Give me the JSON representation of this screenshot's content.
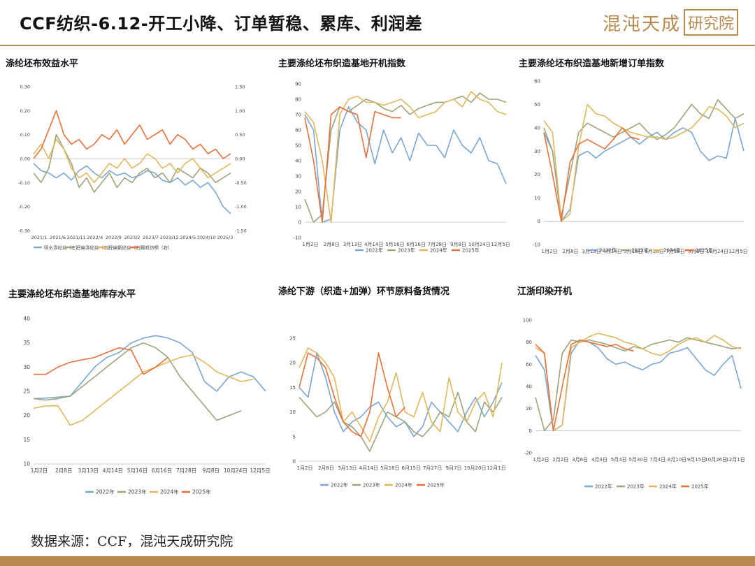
{
  "header": {
    "title": "CCF纺织-6.12-开工小降、订单暂稳、累库、利润差",
    "logo_text": "混沌天成",
    "logo_box": "研究院"
  },
  "footer": {
    "source": "数据来源：CCF，混沌天成研究院"
  },
  "colors": {
    "2022": "#7aa6d4",
    "2023": "#98a67a",
    "2024": "#e0b75a",
    "2025": "#e8703a",
    "gold": "#b98a4e"
  },
  "charts": [
    {
      "id": "c1",
      "title": "涤纶坯布效益水平",
      "type": "line",
      "ylim": [
        -0.3,
        0.3
      ],
      "yticks": [
        "0.30",
        "0.20",
        "0.10",
        "0.00",
        "-0.10",
        "-0.20",
        "-0.30"
      ],
      "y2lim": [
        -1.5,
        1.5
      ],
      "y2ticks": [
        "1.50",
        "1.00",
        "0.50",
        "0.00",
        "-0.50",
        "-1.00",
        "-1.50"
      ],
      "xticks": [
        "2021/1",
        "2021/6",
        "2021/11",
        "2022/4",
        "2022/9",
        "2023/2",
        "2023/7",
        "2023/12",
        "2024/5",
        "2024/10",
        "2025/3"
      ],
      "legend": [
        "喷水涤纶丝（左）",
        "经编涤纶丝（右）",
        "经编氨纶丝（右）",
        "圆机仿棉（右）"
      ],
      "series": [
        {
          "name": "喷水涤纶丝（左）",
          "color": "#7aa6d4",
          "axis": "left",
          "values": [
            -0.02,
            -0.05,
            -0.06,
            -0.08,
            -0.06,
            -0.09,
            -0.05,
            -0.03,
            -0.06,
            -0.08,
            -0.05,
            -0.07,
            -0.06,
            -0.08,
            -0.07,
            -0.05,
            -0.06,
            -0.09,
            -0.1,
            -0.08,
            -0.11,
            -0.09,
            -0.12,
            -0.1,
            -0.14,
            -0.2,
            -0.23
          ]
        },
        {
          "name": "经编涤纶丝（右）",
          "color": "#98a67a",
          "axis": "right",
          "values": [
            -0.3,
            -0.5,
            -0.2,
            0.5,
            0.2,
            -0.1,
            -0.6,
            -0.4,
            -0.7,
            -0.5,
            -0.3,
            -0.6,
            -0.4,
            -0.5,
            -0.3,
            -0.2,
            -0.4,
            -0.3,
            -0.5,
            -0.2,
            -0.3,
            -0.4,
            -0.2,
            -0.3,
            -0.5,
            -0.4,
            -0.3
          ]
        },
        {
          "name": "经编氨纶丝（右）",
          "color": "#e0b75a",
          "axis": "right",
          "values": [
            0.1,
            0.3,
            0.0,
            0.4,
            0.2,
            -0.2,
            -0.4,
            -0.3,
            -0.5,
            -0.3,
            -0.1,
            -0.2,
            0.0,
            -0.2,
            -0.1,
            0.1,
            0.0,
            -0.2,
            -0.1,
            -0.3,
            -0.1,
            0.0,
            -0.2,
            -0.4,
            -0.3,
            -0.2,
            -0.1
          ]
        },
        {
          "name": "圆机仿棉（右）",
          "color": "#e8703a",
          "axis": "right",
          "values": [
            0.0,
            0.2,
            0.6,
            1.0,
            0.5,
            0.3,
            0.4,
            0.2,
            0.3,
            0.5,
            0.4,
            0.6,
            0.3,
            0.5,
            0.7,
            0.4,
            0.5,
            0.6,
            0.3,
            0.5,
            0.4,
            0.2,
            0.3,
            0.1,
            0.2,
            0.0,
            0.1
          ]
        }
      ]
    },
    {
      "id": "c2",
      "title": "主要涤纶坯布织造基地开机指数",
      "type": "line",
      "ylim": [
        -10,
        90
      ],
      "yticks": [
        "90",
        "80",
        "70",
        "60",
        "50",
        "40",
        "30",
        "20",
        "10",
        "0",
        "-10"
      ],
      "xticks": [
        "1月2日",
        "2月8日",
        "3月13日",
        "4月14日",
        "5月16日",
        "6月16日",
        "7月28日",
        "9月8日",
        "10月24日",
        "12月5日"
      ],
      "legend": [
        "2022年",
        "2023年",
        "2024年",
        "2025年"
      ],
      "series": [
        {
          "name": "2022年",
          "values": [
            70,
            60,
            0,
            2,
            60,
            75,
            65,
            60,
            38,
            60,
            45,
            55,
            40,
            58,
            50,
            50,
            42,
            60,
            50,
            45,
            55,
            40,
            38,
            25
          ]
        },
        {
          "name": "2023年",
          "values": [
            15,
            0,
            5,
            60,
            75,
            72,
            76,
            80,
            78,
            74,
            72,
            76,
            70,
            74,
            76,
            78,
            78,
            80,
            82,
            78,
            84,
            80,
            80,
            78
          ]
        },
        {
          "name": "2024年",
          "values": [
            72,
            65,
            40,
            0,
            70,
            80,
            82,
            78,
            78,
            76,
            78,
            80,
            75,
            68,
            70,
            72,
            78,
            80,
            75,
            85,
            80,
            78,
            72,
            70
          ]
        },
        {
          "name": "2025年",
          "values": [
            68,
            40,
            0,
            70,
            75,
            72,
            70,
            42,
            72,
            70,
            68,
            68
          ]
        }
      ]
    },
    {
      "id": "c3",
      "title": "主要涤纶坯布织造基地新增订单指数",
      "type": "line",
      "ylim": [
        -10,
        60
      ],
      "yticks": [
        "60",
        "50",
        "40",
        "30",
        "20",
        "10",
        "0",
        "-10"
      ],
      "xticks": [
        "1月2日",
        "2月8日",
        "3月13日",
        "4月14日",
        "5月16日",
        "6月16日",
        "7月28日",
        "9月8日",
        "10月24日",
        "12月5日"
      ],
      "legend": [
        "2022年",
        "2023年",
        "2024年",
        "2025年"
      ],
      "series": [
        {
          "name": "2022年",
          "values": [
            38,
            30,
            0,
            5,
            28,
            30,
            27,
            30,
            32,
            34,
            36,
            33,
            36,
            38,
            35,
            38,
            40,
            38,
            30,
            26,
            28,
            27,
            44,
            30
          ]
        },
        {
          "name": "2023年",
          "values": [
            40,
            30,
            2,
            20,
            38,
            42,
            40,
            38,
            36,
            38,
            40,
            42,
            38,
            35,
            37,
            40,
            45,
            50,
            46,
            44,
            52,
            48,
            44,
            46
          ]
        },
        {
          "name": "2024年",
          "values": [
            43,
            38,
            0,
            3,
            32,
            50,
            46,
            45,
            42,
            40,
            38,
            37,
            36,
            36,
            35,
            36,
            38,
            40,
            44,
            49,
            48,
            45,
            40,
            42
          ]
        },
        {
          "name": "2025年",
          "values": [
            38,
            20,
            0,
            25,
            33,
            35,
            33,
            31,
            35,
            40,
            36,
            35
          ]
        }
      ]
    },
    {
      "id": "c4",
      "title": "主要涤纶坯布织造基地库存水平",
      "type": "line",
      "ylim": [
        10,
        40
      ],
      "yticks": [
        "40",
        "35",
        "30",
        "25",
        "20",
        "15",
        "10"
      ],
      "xticks": [
        "1月2日",
        "2月8日",
        "3月13日",
        "4月14日",
        "5月16日",
        "6月16日",
        "7月28日",
        "9月8日",
        "10月24日",
        "12月5日"
      ],
      "legend": [
        "2022年",
        "2023年",
        "2024年",
        "2025年"
      ],
      "series": [
        {
          "name": "2022年",
          "values": [
            23.5,
            23.6,
            23.8,
            24,
            27,
            30,
            32,
            33,
            35,
            36,
            36.5,
            36,
            35,
            33,
            27,
            25,
            28,
            29,
            28,
            25
          ]
        },
        {
          "name": "2023年",
          "values": [
            23.5,
            23.2,
            23.5,
            24,
            26,
            28,
            30,
            32,
            34,
            35,
            34,
            32,
            28,
            25,
            22,
            19,
            20,
            21
          ]
        },
        {
          "name": "2024年",
          "values": [
            21.5,
            22,
            22,
            18,
            19,
            21,
            23,
            25,
            27,
            29,
            30,
            31,
            32,
            32.5,
            31,
            29,
            28,
            27,
            27.5
          ]
        },
        {
          "name": "2025年",
          "values": [
            28.5,
            28.5,
            30,
            31,
            31.5,
            32,
            33,
            34,
            33.5,
            28.5,
            30,
            32
          ]
        }
      ]
    },
    {
      "id": "c5",
      "title": "涤纶下游（织造+加弹）环节原料备货情况",
      "type": "line",
      "ylim": [
        0,
        25
      ],
      "yticks": [
        "25",
        "20",
        "15",
        "10",
        "5",
        "0"
      ],
      "xticks": [
        "1月2日",
        "2月8日",
        "3月13日",
        "4月14日",
        "5月16日",
        "6月15日",
        "7月27日",
        "9月7日",
        "10月20日",
        "12月1日"
      ],
      "legend": [
        "2022年",
        "2023年",
        "2024年",
        "2025年"
      ],
      "series": [
        {
          "name": "2022年",
          "values": [
            15,
            13,
            22,
            17,
            10,
            6,
            8,
            9,
            11,
            12,
            9,
            7,
            8,
            5,
            7,
            12,
            10,
            8,
            6,
            10,
            13,
            9,
            12,
            16
          ]
        },
        {
          "name": "2023年",
          "values": [
            13,
            11,
            9,
            10,
            12,
            8,
            7,
            5,
            2,
            6,
            10,
            9,
            8,
            6,
            5,
            7,
            10,
            9,
            14,
            8,
            6,
            12,
            10,
            13
          ]
        },
        {
          "name": "2024年",
          "values": [
            19,
            23,
            22,
            20,
            17,
            8,
            10,
            7,
            4,
            9,
            12,
            18,
            10,
            9,
            14,
            8,
            6,
            17,
            10,
            8,
            12,
            14,
            9,
            20
          ]
        },
        {
          "name": "2025年",
          "values": [
            15,
            22,
            21,
            19,
            13,
            8,
            6,
            5,
            10,
            22,
            15,
            9,
            11
          ]
        }
      ]
    },
    {
      "id": "c6",
      "title": "江浙印染开机",
      "type": "line",
      "ylim": [
        -20,
        100
      ],
      "yticks": [
        "100",
        "80",
        "60",
        "40",
        "20",
        "0",
        "-20"
      ],
      "xticks": [
        "1月2日",
        "2月2日",
        "3月6日",
        "4月3日",
        "5月4日",
        "5月30日",
        "7月4日",
        "8月10日",
        "9月15日",
        "10月26日",
        "12月1日"
      ],
      "legend": [
        "2022年",
        "2023年",
        "2024年",
        "2025年"
      ],
      "series": [
        {
          "name": "2022年",
          "values": [
            68,
            55,
            0,
            5,
            70,
            82,
            80,
            75,
            65,
            60,
            62,
            58,
            55,
            60,
            62,
            70,
            72,
            75,
            65,
            55,
            50,
            60,
            68,
            38
          ]
        },
        {
          "name": "2023年",
          "values": [
            30,
            0,
            10,
            70,
            82,
            80,
            82,
            80,
            78,
            75,
            72,
            76,
            74,
            78,
            80,
            82,
            80,
            84,
            82,
            80,
            78,
            76,
            74,
            75
          ]
        },
        {
          "name": "2024年",
          "values": [
            75,
            70,
            0,
            5,
            75,
            80,
            85,
            88,
            86,
            84,
            80,
            78,
            74,
            70,
            68,
            72,
            78,
            82,
            84,
            80,
            86,
            82,
            76,
            74
          ]
        },
        {
          "name": "2025年",
          "values": [
            78,
            70,
            0,
            40,
            78,
            82,
            80,
            78,
            76,
            78,
            74,
            72
          ]
        }
      ]
    }
  ]
}
